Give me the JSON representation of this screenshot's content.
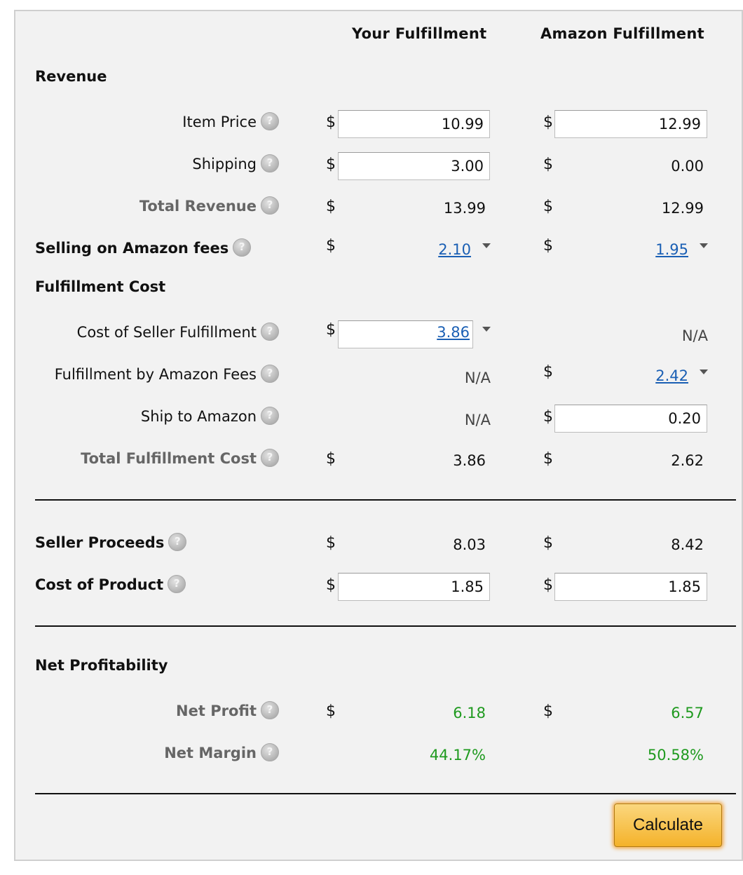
{
  "columns": {
    "your": "Your Fulfillment",
    "amazon": "Amazon Fulfillment"
  },
  "currency": "$",
  "revenue": {
    "section": "Revenue",
    "item_price": {
      "label": "Item Price",
      "your": "10.99",
      "amazon": "12.99"
    },
    "shipping": {
      "label": "Shipping",
      "your": "3.00",
      "amazon": "0.00"
    },
    "total": {
      "label": "Total Revenue",
      "your": "13.99",
      "amazon": "12.99"
    }
  },
  "selling_fees": {
    "label": "Selling on Amazon fees",
    "your": "2.10",
    "amazon": "1.95"
  },
  "fulfillment": {
    "section": "Fulfillment Cost",
    "seller": {
      "label": "Cost of Seller Fulfillment",
      "your": "3.86",
      "amazon": "N/A"
    },
    "fba": {
      "label": "Fulfillment by Amazon Fees",
      "your": "N/A",
      "amazon": "2.42"
    },
    "ship": {
      "label": "Ship to Amazon",
      "your": "N/A",
      "amazon": "0.20"
    },
    "total": {
      "label": "Total Fulfillment Cost",
      "your": "3.86",
      "amazon": "2.62"
    }
  },
  "proceeds": {
    "label": "Seller Proceeds",
    "your": "8.03",
    "amazon": "8.42"
  },
  "cost_product": {
    "label": "Cost of Product",
    "your": "1.85",
    "amazon": "1.85"
  },
  "profit": {
    "section": "Net Profitability",
    "net_profit": {
      "label": "Net Profit",
      "your": "6.18",
      "amazon": "6.57"
    },
    "net_margin": {
      "label": "Net Margin",
      "your": "44.17%",
      "amazon": "50.58%"
    }
  },
  "calculate_label": "Calculate",
  "colors": {
    "link": "#1a5fb4",
    "profit": "#1f9a1f",
    "button": "#f4b22a"
  },
  "icons": {
    "help": "help-icon",
    "dropdown": "caret-down-icon"
  }
}
